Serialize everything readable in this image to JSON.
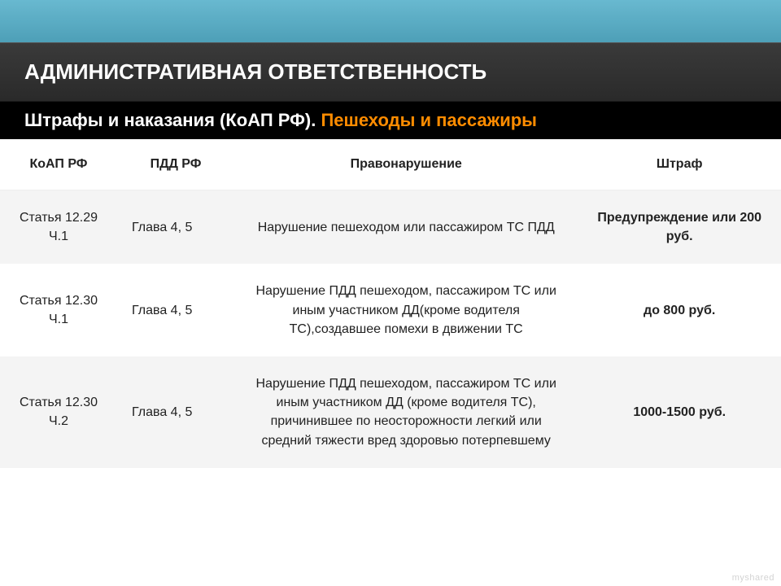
{
  "header": {
    "title": "АДМИНИСТРАТИВНАЯ ОТВЕТСТВЕННОСТЬ"
  },
  "subheader": {
    "prefix": "Штрафы и наказания (КоАП РФ). ",
    "highlight": "Пешеходы и пассажиры"
  },
  "table": {
    "columns": [
      "КоАП РФ",
      "ПДД РФ",
      "Правонарушение",
      "Штраф"
    ],
    "col_widths_pct": [
      15,
      15,
      44,
      26
    ],
    "header_bg": "#ffffff",
    "row_bg_odd": "#f4f4f4",
    "row_bg_even": "#ffffff",
    "font_size": 16,
    "rows": [
      {
        "koap": "Статья 12.29 Ч.1",
        "pdd": "Глава 4, 5",
        "violation": "Нарушение пешеходом или пассажиром ТС ПДД",
        "fine": "Предупреждение или 200 руб.",
        "fine_bold": true
      },
      {
        "koap": "Статья 12.30 Ч.1",
        "pdd": "Глава 4, 5",
        "violation": "Нарушение ПДД пешеходом, пассажиром ТС или иным участником ДД(кроме водителя ТС),создавшее помехи в движении ТС",
        "fine": "до 800 руб.",
        "fine_bold": true
      },
      {
        "koap": "Статья 12.30 Ч.2",
        "pdd": "Глава 4, 5",
        "violation": "Нарушение ПДД пешеходом, пассажиром ТС или иным участником ДД (кроме водителя ТС), причинившее по неосторожности легкий или средний тяжести вред здоровью потерпевшему",
        "fine": "1000-1500 руб.",
        "fine_bold": true
      }
    ]
  },
  "watermark": "myshared"
}
